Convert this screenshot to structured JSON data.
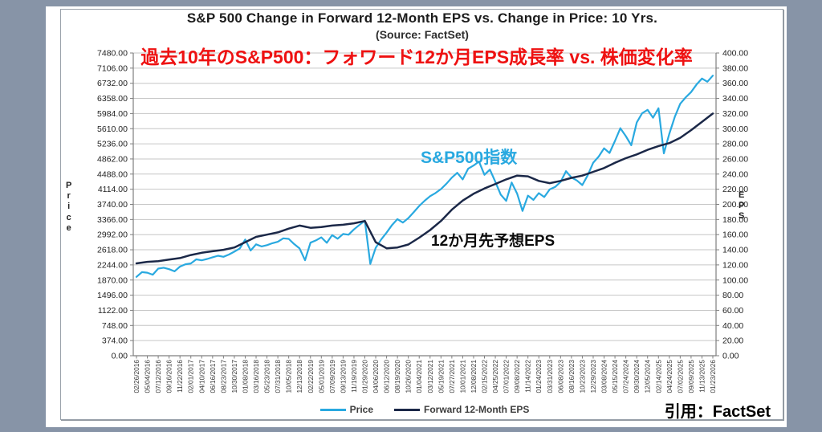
{
  "page": {
    "background_color": "#8794a7",
    "panel_color": "#ffffff"
  },
  "header": {
    "title": "S&P 500 Change in Forward 12-Month EPS vs. Change in Price: 10 Yrs.",
    "subtitle": "(Source: FactSet)",
    "headline_jp": "過去10年のS&P500：フォワード12か月EPS成長率 vs. 株価変化率",
    "headline_color": "#ee1111"
  },
  "annotations": {
    "price_series_jp": "S&P500指数",
    "price_series_color": "#29a9e0",
    "eps_series_jp": "12か月先予想EPS",
    "citation": "引用：FactSet"
  },
  "legend": {
    "items": [
      "Price",
      "Forward 12-Month EPS"
    ]
  },
  "chart_data": {
    "type": "line",
    "title": "S&P 500 Change in Forward 12-Month EPS vs. Change in Price: 10 Yrs.",
    "subtitle": "(Source: FactSet)",
    "grid": true,
    "legend_position": "bottom",
    "left_axis": {
      "label": "Price",
      "min": 0,
      "max": 7480,
      "step": 374,
      "tick_format": "2dp"
    },
    "right_axis": {
      "label": "EPS",
      "min": 0,
      "max": 400,
      "step": 20,
      "tick_format": "2dp"
    },
    "x_labels": [
      "02/26/2016",
      "05/04/2016",
      "07/12/2016",
      "09/16/2016",
      "11/22/2016",
      "02/01/2017",
      "04/10/2017",
      "06/16/2017",
      "08/23/2017",
      "10/30/2017",
      "01/08/2018",
      "03/16/2018",
      "05/23/2018",
      "07/31/2018",
      "10/05/2018",
      "12/13/2018",
      "02/22/2019",
      "05/01/2019",
      "07/09/2019",
      "09/13/2019",
      "11/19/2019",
      "01/29/2020",
      "04/06/2020",
      "06/12/2020",
      "08/19/2020",
      "10/26/2020",
      "01/04/2021",
      "03/12/2021",
      "05/19/2021",
      "07/27/2021",
      "10/01/2021",
      "12/08/2021",
      "02/15/2022",
      "04/25/2022",
      "07/01/2022",
      "09/08/2022",
      "11/14/2022",
      "01/24/2023",
      "03/31/2023",
      "06/08/2023",
      "08/16/2023",
      "10/23/2023",
      "12/29/2023",
      "03/08/2024",
      "05/15/2024",
      "07/24/2024",
      "09/30/2024",
      "12/05/2024",
      "02/14/2025",
      "04/24/2025",
      "07/02/2025",
      "09/09/2025",
      "11/13/2025",
      "01/23/2026"
    ],
    "series": [
      {
        "name": "Price",
        "axis": "left",
        "color": "#29a9e0",
        "width": 2.2,
        "values": [
          1948,
          2065,
          2051,
          2001,
          2152,
          2175,
          2139,
          2085,
          2203,
          2260,
          2280,
          2380,
          2357,
          2390,
          2433,
          2470,
          2444,
          2500,
          2572,
          2650,
          2870,
          2600,
          2752,
          2700,
          2733,
          2780,
          2816,
          2900,
          2886,
          2760,
          2651,
          2360,
          2793,
          2850,
          2924,
          2790,
          2980,
          2890,
          3007,
          2990,
          3120,
          3230,
          3338,
          2270,
          2664,
          2870,
          3041,
          3230,
          3375,
          3290,
          3401,
          3550,
          3701,
          3830,
          3943,
          4020,
          4116,
          4250,
          4401,
          4520,
          4357,
          4620,
          4701,
          4797,
          4471,
          4600,
          4296,
          3980,
          3825,
          4280,
          4006,
          3577,
          3957,
          3852,
          4017,
          3920,
          4109,
          4170,
          4294,
          4560,
          4404,
          4330,
          4217,
          4460,
          4770,
          4920,
          5124,
          5010,
          5308,
          5620,
          5427,
          5200,
          5762,
          5990,
          6075,
          5880,
          6115,
          5000,
          5485,
          5900,
          6227,
          6380,
          6513,
          6700,
          6850,
          6770,
          6920
        ]
      },
      {
        "name": "Forward 12-Month EPS",
        "axis": "right",
        "color": "#1b2848",
        "width": 2.5,
        "values": [
          122,
          124,
          125,
          127,
          129,
          133,
          136,
          138,
          140,
          143,
          150,
          157,
          160,
          163,
          168,
          172,
          169,
          170,
          172,
          173,
          175,
          178,
          150,
          142,
          143,
          147,
          156,
          166,
          178,
          193,
          205,
          214,
          221,
          227,
          233,
          238,
          237,
          231,
          228,
          231,
          235,
          238,
          243,
          248,
          255,
          261,
          266,
          272,
          277,
          281,
          288,
          298,
          309,
          320
        ]
      }
    ]
  }
}
